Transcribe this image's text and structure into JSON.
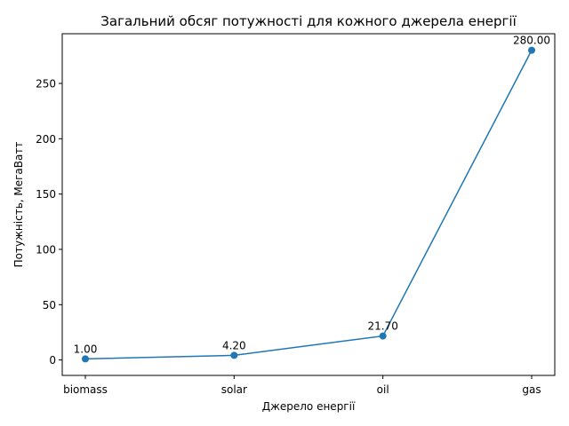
{
  "chart_data": {
    "type": "line",
    "title": "Загальний обсяг потужності для кожного джерела енергії",
    "xlabel": "Джерело енергії",
    "ylabel": "Потужність, МегаВатт",
    "categories": [
      "biomass",
      "solar",
      "oil",
      "gas"
    ],
    "values": [
      1.0,
      4.2,
      21.7,
      280.0
    ],
    "data_labels": [
      "1.00",
      "4.20",
      "21.70",
      "280.00"
    ],
    "ylim": [
      -13.95,
      294.95
    ],
    "yticks": [
      0,
      50,
      100,
      150,
      200,
      250
    ],
    "ytick_labels": [
      "0",
      "50",
      "100",
      "150",
      "200",
      "250"
    ],
    "grid": false,
    "series_color": "#1f77b4"
  }
}
